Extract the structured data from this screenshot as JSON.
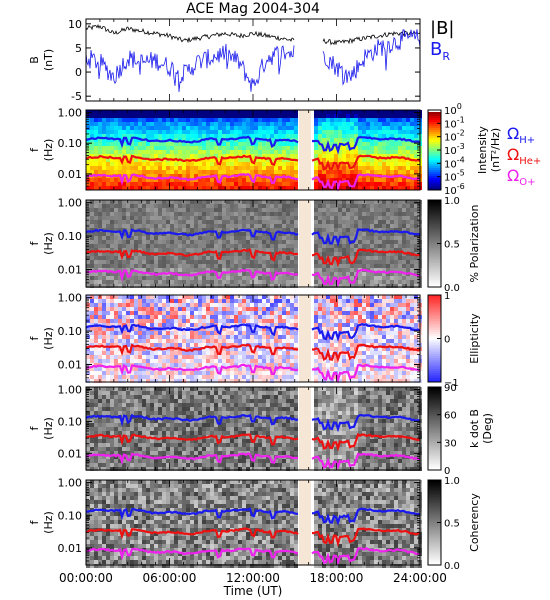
{
  "chart_data": {
    "type": "heatmap",
    "title": "ACE Mag 2004-304",
    "xlabel": "Time (UT)",
    "xlim": [
      "00:00:00",
      "24:00:00"
    ],
    "x_ticks": [
      "00:00:00",
      "06:00:00",
      "12:00:00",
      "18:00:00",
      "24:00:00"
    ],
    "data_gap": [
      "~15:00",
      "~16:00"
    ],
    "panels": [
      {
        "type": "line",
        "ylabel": "B",
        "yunit": "(nT)",
        "ylim": [
          -6,
          11
        ],
        "y_ticks": [
          "10",
          "5",
          "0",
          "-5"
        ],
        "y_tick_values": [
          10,
          5,
          0,
          -5
        ],
        "series": [
          {
            "name": "|B|",
            "color": "#000000",
            "x": [
              0,
              1,
              2,
              3,
              4,
              5,
              6,
              7,
              8,
              9,
              10,
              11,
              12,
              13,
              14,
              15,
              16,
              17,
              18,
              19,
              20,
              21,
              22,
              23,
              24
            ],
            "y": [
              9,
              9.5,
              8,
              9,
              8.5,
              8,
              7.5,
              6.5,
              7,
              7.5,
              8,
              7.5,
              8,
              7.5,
              7,
              6.5,
              null,
              6.5,
              6,
              6.5,
              7,
              7.5,
              8,
              8,
              8
            ]
          },
          {
            "name": "B_R",
            "color": "#1a1aee",
            "x": [
              0,
              1,
              2,
              3,
              4,
              5,
              6,
              7,
              8,
              9,
              10,
              11,
              12,
              13,
              14,
              15,
              16,
              17,
              18,
              19,
              20,
              21,
              22,
              23,
              24
            ],
            "y": [
              3,
              2,
              -1,
              3,
              2,
              2.5,
              1,
              -0.5,
              2,
              3,
              4,
              2,
              -3,
              3,
              4,
              4,
              null,
              4,
              1,
              -1,
              3,
              5,
              6,
              7,
              7
            ]
          }
        ],
        "legend": [
          {
            "label": "|B|",
            "color": "#000000"
          },
          {
            "label": "B",
            "sub": "R",
            "color": "#1a1aee"
          }
        ]
      },
      {
        "type": "heatmap",
        "ylabel": "f",
        "yunit": "(Hz)",
        "ylim": [
          0.003,
          1.2
        ],
        "y_ticks": [
          "1.00",
          "0.10",
          "0.01"
        ],
        "y_tick_values": [
          1,
          0.1,
          0.01
        ],
        "colorbar": {
          "label": "Intensity",
          "unit": "(nT²/Hz)",
          "ticks": [
            {
              "base": "10",
              "exp": "0"
            },
            {
              "base": "10",
              "exp": "-1"
            },
            {
              "base": "10",
              "exp": "-2"
            },
            {
              "base": "10",
              "exp": "-3"
            },
            {
              "base": "10",
              "exp": "-4"
            },
            {
              "base": "10",
              "exp": "-5"
            },
            {
              "base": "10",
              "exp": "-6"
            }
          ]
        },
        "legend": [
          {
            "label": "Ω",
            "sub": "H+",
            "color": "#1a1aee"
          },
          {
            "label": "Ω",
            "sub": "He+",
            "color": "#ee1111"
          },
          {
            "label": "Ω",
            "sub": "O+",
            "color": "#ee22ee"
          }
        ]
      },
      {
        "type": "heatmap",
        "ylabel": "f",
        "yunit": "(Hz)",
        "ylim": [
          0.003,
          1.2
        ],
        "y_ticks": [
          "1.00",
          "0.10",
          "0.01"
        ],
        "y_tick_values": [
          1,
          0.1,
          0.01
        ],
        "colorbar": {
          "label": "% Polarization",
          "range": [
            0,
            1
          ],
          "ticks": [
            {
              "text": "1.0"
            },
            {
              "text": "0.5"
            },
            {
              "text": "0.0"
            }
          ]
        }
      },
      {
        "type": "heatmap",
        "ylabel": "f",
        "yunit": "(Hz)",
        "ylim": [
          0.003,
          1.2
        ],
        "y_ticks": [
          "1.00",
          "0.10",
          "0.01"
        ],
        "y_tick_values": [
          1,
          0.1,
          0.01
        ],
        "colorbar": {
          "label": "Ellipticity",
          "range": [
            -1,
            1
          ],
          "ticks": [
            {
              "text": "1"
            },
            {
              "text": "0"
            },
            {
              "text": "−1"
            }
          ]
        }
      },
      {
        "type": "heatmap",
        "ylabel": "f",
        "yunit": "(Hz)",
        "ylim": [
          0.003,
          1.2
        ],
        "y_ticks": [
          "1.00",
          "0.10",
          "0.01"
        ],
        "y_tick_values": [
          1,
          0.1,
          0.01
        ],
        "colorbar": {
          "label": "k dot B",
          "unit": "(Deg)",
          "range": [
            0,
            90
          ],
          "ticks": [
            {
              "text": "90"
            },
            {
              "text": "60"
            },
            {
              "text": "30"
            },
            {
              "text": "0"
            }
          ]
        }
      },
      {
        "type": "heatmap",
        "ylabel": "f",
        "yunit": "(Hz)",
        "ylim": [
          0.003,
          1.2
        ],
        "y_ticks": [
          "1.00",
          "0.10",
          "0.01"
        ],
        "y_tick_values": [
          1,
          0.1,
          0.01
        ],
        "colorbar": {
          "label": "Coherency",
          "range": [
            0,
            1
          ],
          "ticks": [
            {
              "text": "1.0"
            },
            {
              "text": "0.5"
            },
            {
              "text": "0.0"
            }
          ]
        }
      }
    ],
    "gyro_lines": [
      {
        "name": "Ω_H+",
        "color": "#1a1aee",
        "base_hz": 0.13
      },
      {
        "name": "Ω_He+",
        "color": "#ee1111",
        "base_hz": 0.032
      },
      {
        "name": "Ω_O+",
        "color": "#ee22ee",
        "base_hz": 0.008
      }
    ]
  }
}
